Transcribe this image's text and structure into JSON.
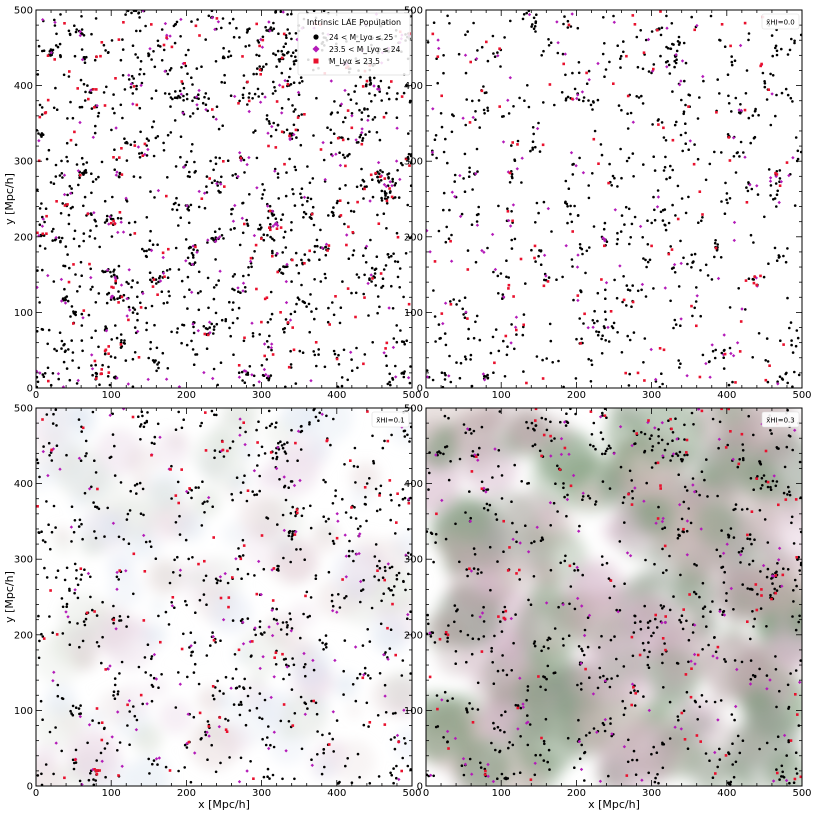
{
  "figure": {
    "xlabel": "x [Mpc/h]",
    "ylabel": "y [Mpc/h]"
  },
  "legend": {
    "title": "Intrinsic LAE Population",
    "entries": [
      {
        "label": "24 < M_Lyα ≤ 25",
        "marker": "circle",
        "color": "#000000"
      },
      {
        "label": "23.5 < M_Lyα ≤ 24",
        "marker": "diamond",
        "color": "#b31bb8"
      },
      {
        "label": "M_Lyα ≤ 23.5",
        "marker": "square",
        "color": "#e8112d"
      }
    ]
  },
  "chart_data": [
    {
      "type": "scatter",
      "panel": "top-left",
      "annotation": "",
      "xlim": [
        0,
        500
      ],
      "ylim": [
        0,
        500
      ],
      "xticks": [
        0,
        100,
        200,
        300,
        400,
        500
      ],
      "yticks": [
        0,
        100,
        200,
        300,
        400,
        500
      ],
      "show_xlabel": false,
      "show_ylabel": true,
      "neutral_fraction": null,
      "series": [
        {
          "name": "24 < M_Lyα ≤ 25",
          "approx_count": 1400
        },
        {
          "name": "23.5 < M_Lyα ≤ 24",
          "approx_count": 230
        },
        {
          "name": "M_Lyα ≤ 23.5",
          "approx_count": 200
        }
      ]
    },
    {
      "type": "scatter",
      "panel": "top-right",
      "annotation": "x̄HI=0.0",
      "xlim": [
        0,
        500
      ],
      "ylim": [
        0,
        500
      ],
      "xticks": [
        0,
        100,
        200,
        300,
        400,
        500
      ],
      "yticks": [
        0,
        100,
        200,
        300,
        400,
        500
      ],
      "show_xlabel": false,
      "show_ylabel": false,
      "neutral_fraction": 0.0,
      "series": [
        {
          "name": "24 < M_Lyα ≤ 25",
          "approx_count": 760
        },
        {
          "name": "23.5 < M_Lyα ≤ 24",
          "approx_count": 130
        },
        {
          "name": "M_Lyα ≤ 23.5",
          "approx_count": 110
        }
      ]
    },
    {
      "type": "scatter",
      "panel": "bottom-left",
      "annotation": "x̄HI=0.1",
      "xlim": [
        0,
        500
      ],
      "ylim": [
        0,
        500
      ],
      "xticks": [
        0,
        100,
        200,
        300,
        400,
        500
      ],
      "yticks": [
        0,
        100,
        200,
        300,
        400,
        500
      ],
      "show_xlabel": true,
      "show_ylabel": true,
      "neutral_fraction": 0.1,
      "series": [
        {
          "name": "24 < M_Lyα ≤ 25",
          "approx_count": 760
        },
        {
          "name": "23.5 < M_Lyα ≤ 24",
          "approx_count": 130
        },
        {
          "name": "M_Lyα ≤ 23.5",
          "approx_count": 110
        }
      ]
    },
    {
      "type": "scatter",
      "panel": "bottom-right",
      "annotation": "x̄HI=0.3",
      "xlim": [
        0,
        500
      ],
      "ylim": [
        0,
        500
      ],
      "xticks": [
        0,
        100,
        200,
        300,
        400,
        500
      ],
      "yticks": [
        0,
        100,
        200,
        300,
        400,
        500
      ],
      "show_xlabel": true,
      "show_ylabel": false,
      "neutral_fraction": 0.3,
      "series": [
        {
          "name": "24 < M_Lyα ≤ 25",
          "approx_count": 760
        },
        {
          "name": "23.5 < M_Lyα ≤ 24",
          "approx_count": 130
        },
        {
          "name": "M_Lyα ≤ 23.5",
          "approx_count": 110
        }
      ]
    }
  ]
}
